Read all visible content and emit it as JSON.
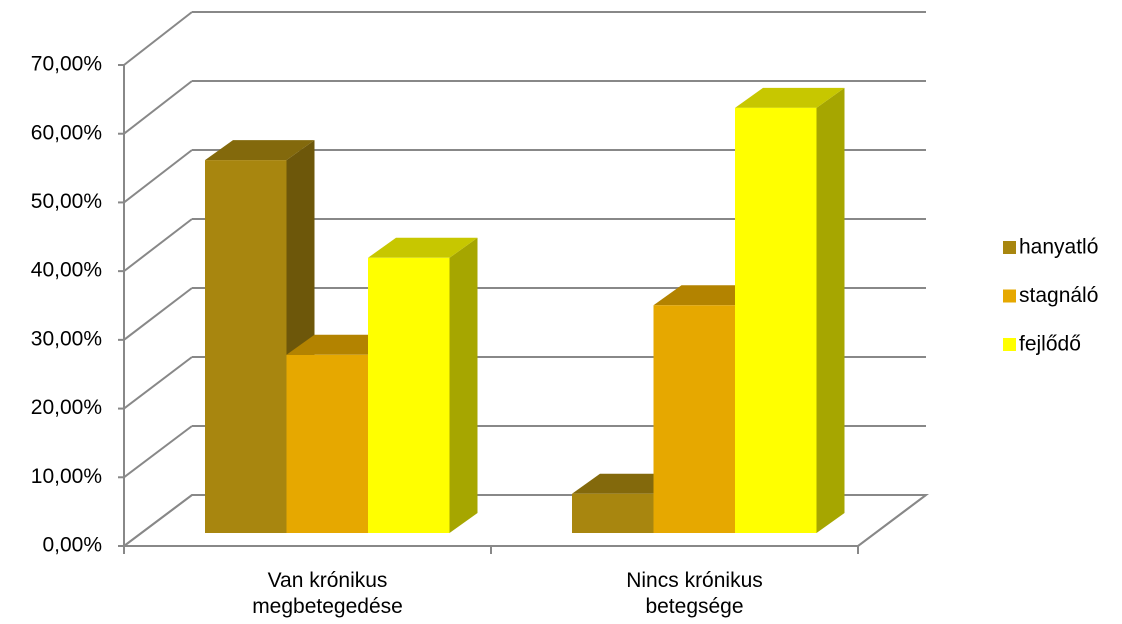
{
  "chart_data": {
    "type": "bar3d",
    "categories": [
      "Van krónikus megbetegedése",
      "Nincs krónikus betegsége"
    ],
    "series": [
      {
        "name": "hanyatló",
        "color": "#a8860f",
        "values": [
          54.2,
          5.7
        ]
      },
      {
        "name": "stagnáló",
        "color": "#e6a800",
        "values": [
          25.9,
          33.1
        ]
      },
      {
        "name": "fejlődő",
        "color": "#ffff00",
        "values": [
          40.0,
          61.8
        ]
      }
    ],
    "ylim": [
      0,
      70
    ],
    "yticks": [
      {
        "value": 0,
        "label": "0,00%"
      },
      {
        "value": 10,
        "label": "10,00%"
      },
      {
        "value": 20,
        "label": "20,00%"
      },
      {
        "value": 30,
        "label": "30,00%"
      },
      {
        "value": 40,
        "label": "40,00%"
      },
      {
        "value": 50,
        "label": "50,00%"
      },
      {
        "value": 60,
        "label": "60,00%"
      },
      {
        "value": 70,
        "label": "70,00%"
      }
    ],
    "grid": true,
    "legend": "right"
  }
}
